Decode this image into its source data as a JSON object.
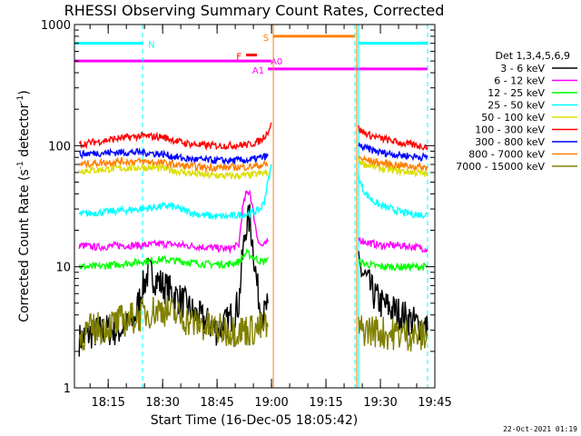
{
  "chart_data": {
    "type": "line",
    "title": "RHESSI Observing Summary Count Rates, Corrected",
    "xlabel": "Start Time (16-Dec-05 18:05:42)",
    "ylabel": "Corrected Count Rate (s",
    "ylabel_sup1": "-1",
    "ylabel_mid": " detector",
    "ylabel_sup2": "-1",
    "ylabel_end": ")",
    "y_scale": "log",
    "ylim": [
      1,
      1000
    ],
    "xlim": [
      "18:05:42",
      "19:45:00"
    ],
    "y_ticks": [
      {
        "value": 1,
        "label": "1"
      },
      {
        "value": 10,
        "label": "10"
      },
      {
        "value": 100,
        "label": "100"
      },
      {
        "value": 1000,
        "label": "1000"
      }
    ],
    "x_ticks": [
      {
        "value": "18:15",
        "label": "18:15"
      },
      {
        "value": "18:30",
        "label": "18:30"
      },
      {
        "value": "18:45",
        "label": "18:45"
      },
      {
        "value": "19:00",
        "label": "19:00"
      },
      {
        "value": "19:15",
        "label": "19:15"
      },
      {
        "value": "19:30",
        "label": "19:30"
      },
      {
        "value": "19:45",
        "label": "19:45"
      }
    ],
    "footer_date": "22-Oct-2021 01:19",
    "legend": {
      "position": "right",
      "header": "Det 1,3,4,5,6,9",
      "entries": [
        {
          "label": "3 - 6 keV",
          "color": "#000000"
        },
        {
          "label": "6 - 12 keV",
          "color": "#ff00ff"
        },
        {
          "label": "12 - 25 keV",
          "color": "#00ff00"
        },
        {
          "label": "25 - 50 keV",
          "color": "#00ffff"
        },
        {
          "label": "50 - 100 keV",
          "color": "#dddd00"
        },
        {
          "label": "100 - 300 keV",
          "color": "#ff0000"
        },
        {
          "label": "300 - 800 keV",
          "color": "#0000ff"
        },
        {
          "label": "800 - 7000 keV",
          "color": "#ff8000"
        },
        {
          "label": "7000 - 15000 keV",
          "color": "#808000"
        }
      ]
    },
    "flags": [
      {
        "label": "N",
        "color": "#00ffff",
        "y": 700,
        "segments": [
          [
            "18:05:42",
            "18:24:30"
          ],
          [
            "19:24:00",
            "19:43:00"
          ]
        ]
      },
      {
        "label": "F",
        "color": "#ff0000",
        "y": 560,
        "segments": [
          [
            "18:53:00",
            "18:56:00"
          ]
        ]
      },
      {
        "label": "S",
        "color": "#ff8000",
        "y": 800,
        "segments": [
          [
            "19:00:30",
            "19:23:00"
          ]
        ]
      },
      {
        "label": "A0",
        "color": "#ff00ff",
        "y": 500,
        "segments": [
          [
            "18:05:42",
            "19:00:00"
          ]
        ]
      },
      {
        "label": "A1",
        "color": "#ff00ff",
        "y": 430,
        "segments": [
          [
            "18:59:00",
            "19:43:00"
          ]
        ]
      }
    ],
    "markers": [
      {
        "time": "18:05:42",
        "color": "#00ffff",
        "style": "solid"
      },
      {
        "time": "18:24:30",
        "color": "#00ffff",
        "style": "dashed"
      },
      {
        "time": "19:00:30",
        "color": "#ff8000",
        "style": "solid"
      },
      {
        "time": "19:23:00",
        "color": "#00ffff",
        "style": "dashed"
      },
      {
        "time": "19:23:30",
        "color": "#ff8000",
        "style": "solid"
      },
      {
        "time": "19:24:00",
        "color": "#00ffff",
        "style": "solid"
      },
      {
        "time": "19:43:00",
        "color": "#00ffff",
        "style": "dashed"
      }
    ],
    "series": [
      {
        "name": "3 - 6 keV",
        "color": "#000000",
        "segments": [
          {
            "x": [
              "18:07",
              "18:10",
              "18:14",
              "18:18",
              "18:22",
              "18:24",
              "18:26",
              "18:28",
              "18:30",
              "18:33",
              "18:36",
              "18:39",
              "18:42",
              "18:45",
              "18:48",
              "18:51",
              "18:52",
              "18:53",
              "18:54",
              "18:55",
              "18:56",
              "18:57",
              "18:58",
              "18:59"
            ],
            "y": [
              2.5,
              2.8,
              3,
              3,
              3.5,
              6,
              9,
              8,
              7,
              6,
              5,
              4,
              3.5,
              3,
              3.5,
              5,
              12,
              22,
              25,
              14,
              7,
              4.5,
              4,
              5
            ]
          },
          {
            "x": [
              "19:24",
              "19:25",
              "19:26",
              "19:28",
              "19:30",
              "19:33",
              "19:36",
              "19:39",
              "19:42",
              "19:43"
            ],
            "y": [
              10,
              9,
              8,
              6,
              5,
              4.5,
              4,
              3.5,
              3.2,
              3
            ]
          }
        ]
      },
      {
        "name": "6 - 12 keV",
        "color": "#ff00ff",
        "segments": [
          {
            "x": [
              "18:07",
              "18:12",
              "18:18",
              "18:24",
              "18:30",
              "18:36",
              "18:42",
              "18:48",
              "18:51",
              "18:52",
              "18:53",
              "18:54",
              "18:55",
              "18:56",
              "18:57",
              "18:58",
              "18:59"
            ],
            "y": [
              15,
              14.5,
              15,
              15,
              15.5,
              15,
              14.5,
              14,
              15,
              30,
              40,
              42,
              28,
              18,
              15,
              15,
              16
            ]
          },
          {
            "x": [
              "19:24",
              "19:26",
              "19:30",
              "19:35",
              "19:40",
              "19:43"
            ],
            "y": [
              17,
              16,
              15,
              15,
              14.5,
              14
            ]
          }
        ]
      },
      {
        "name": "12 - 25 keV",
        "color": "#00ff00",
        "segments": [
          {
            "x": [
              "18:07",
              "18:12",
              "18:18",
              "18:24",
              "18:30",
              "18:36",
              "18:42",
              "18:48",
              "18:51",
              "18:53",
              "18:55",
              "18:57",
              "18:58",
              "18:59"
            ],
            "y": [
              10,
              10,
              10.5,
              11,
              11.5,
              11,
              10.5,
              10.5,
              11,
              13,
              12,
              11,
              11,
              12
            ]
          },
          {
            "x": [
              "19:24",
              "19:26",
              "19:30",
              "19:35",
              "19:40",
              "19:43"
            ],
            "y": [
              11,
              10.5,
              10,
              10,
              10,
              10
            ]
          }
        ]
      },
      {
        "name": "25 - 50 keV",
        "color": "#00ffff",
        "segments": [
          {
            "x": [
              "18:07",
              "18:12",
              "18:18",
              "18:24",
              "18:28",
              "18:32",
              "18:36",
              "18:40",
              "18:44",
              "18:48",
              "18:52",
              "18:55",
              "18:57",
              "18:58",
              "18:59",
              "19:00"
            ],
            "y": [
              27,
              28,
              29,
              30,
              31,
              32,
              29,
              27,
              26,
              26,
              27,
              28,
              30,
              35,
              50,
              70
            ]
          },
          {
            "x": [
              "19:24",
              "19:25",
              "19:26",
              "19:28",
              "19:30",
              "19:33",
              "19:36",
              "19:40",
              "19:43"
            ],
            "y": [
              55,
              45,
              40,
              35,
              32,
              30,
              28,
              27,
              27
            ]
          }
        ]
      },
      {
        "name": "50 - 100 keV",
        "color": "#dddd00",
        "segments": [
          {
            "x": [
              "18:07",
              "18:12",
              "18:18",
              "18:24",
              "18:30",
              "18:36",
              "18:42",
              "18:48",
              "18:54",
              "18:59"
            ],
            "y": [
              62,
              63,
              65,
              66,
              65,
              60,
              57,
              56,
              57,
              60
            ]
          },
          {
            "x": [
              "19:24",
              "19:26",
              "19:30",
              "19:35",
              "19:40",
              "19:43"
            ],
            "y": [
              75,
              70,
              65,
              62,
              60,
              58
            ]
          }
        ]
      },
      {
        "name": "100 - 300 keV",
        "color": "#ff0000",
        "segments": [
          {
            "x": [
              "18:07",
              "18:12",
              "18:18",
              "18:24",
              "18:30",
              "18:36",
              "18:42",
              "18:48",
              "18:54",
              "18:57",
              "18:59",
              "19:00"
            ],
            "y": [
              102,
              108,
              115,
              120,
              118,
              105,
              100,
              100,
              102,
              110,
              130,
              155
            ]
          },
          {
            "x": [
              "19:24",
              "19:25",
              "19:27",
              "19:30",
              "19:34",
              "19:38",
              "19:43"
            ],
            "y": [
              140,
              130,
              122,
              115,
              108,
              102,
              98
            ]
          }
        ]
      },
      {
        "name": "300 - 800 keV",
        "color": "#0000ff",
        "segments": [
          {
            "x": [
              "18:07",
              "18:12",
              "18:18",
              "18:24",
              "18:30",
              "18:36",
              "18:42",
              "18:48",
              "18:54",
              "18:59"
            ],
            "y": [
              85,
              87,
              88,
              88,
              85,
              78,
              76,
              75,
              76,
              82
            ]
          },
          {
            "x": [
              "19:24",
              "19:26",
              "19:30",
              "19:35",
              "19:40",
              "19:43"
            ],
            "y": [
              100,
              95,
              88,
              84,
              81,
              80
            ]
          }
        ]
      },
      {
        "name": "800 - 7000 keV",
        "color": "#ff8000",
        "segments": [
          {
            "x": [
              "18:07",
              "18:12",
              "18:18",
              "18:24",
              "18:30",
              "18:36",
              "18:42",
              "18:48",
              "18:54",
              "18:59"
            ],
            "y": [
              70,
              72,
              74,
              74,
              72,
              68,
              66,
              66,
              67,
              70
            ]
          },
          {
            "x": [
              "19:24",
              "19:26",
              "19:30",
              "19:35",
              "19:40",
              "19:43"
            ],
            "y": [
              80,
              76,
              72,
              69,
              67,
              66
            ]
          }
        ]
      },
      {
        "name": "7000 - 15000 keV",
        "color": "#808000",
        "segments": [
          {
            "x": [
              "18:07",
              "18:10",
              "18:14",
              "18:18",
              "18:22",
              "18:26",
              "18:30",
              "18:34",
              "18:38",
              "18:42",
              "18:46",
              "18:50",
              "18:54",
              "18:59"
            ],
            "y": [
              2.6,
              3,
              3.2,
              3.5,
              3.8,
              4.2,
              4.5,
              4,
              3.5,
              3.2,
              3,
              3,
              3,
              3.2
            ]
          },
          {
            "x": [
              "19:24",
              "19:28",
              "19:32",
              "19:36",
              "19:40",
              "19:43"
            ],
            "y": [
              3,
              3,
              2.8,
              2.8,
              2.7,
              2.7
            ]
          }
        ]
      }
    ]
  }
}
